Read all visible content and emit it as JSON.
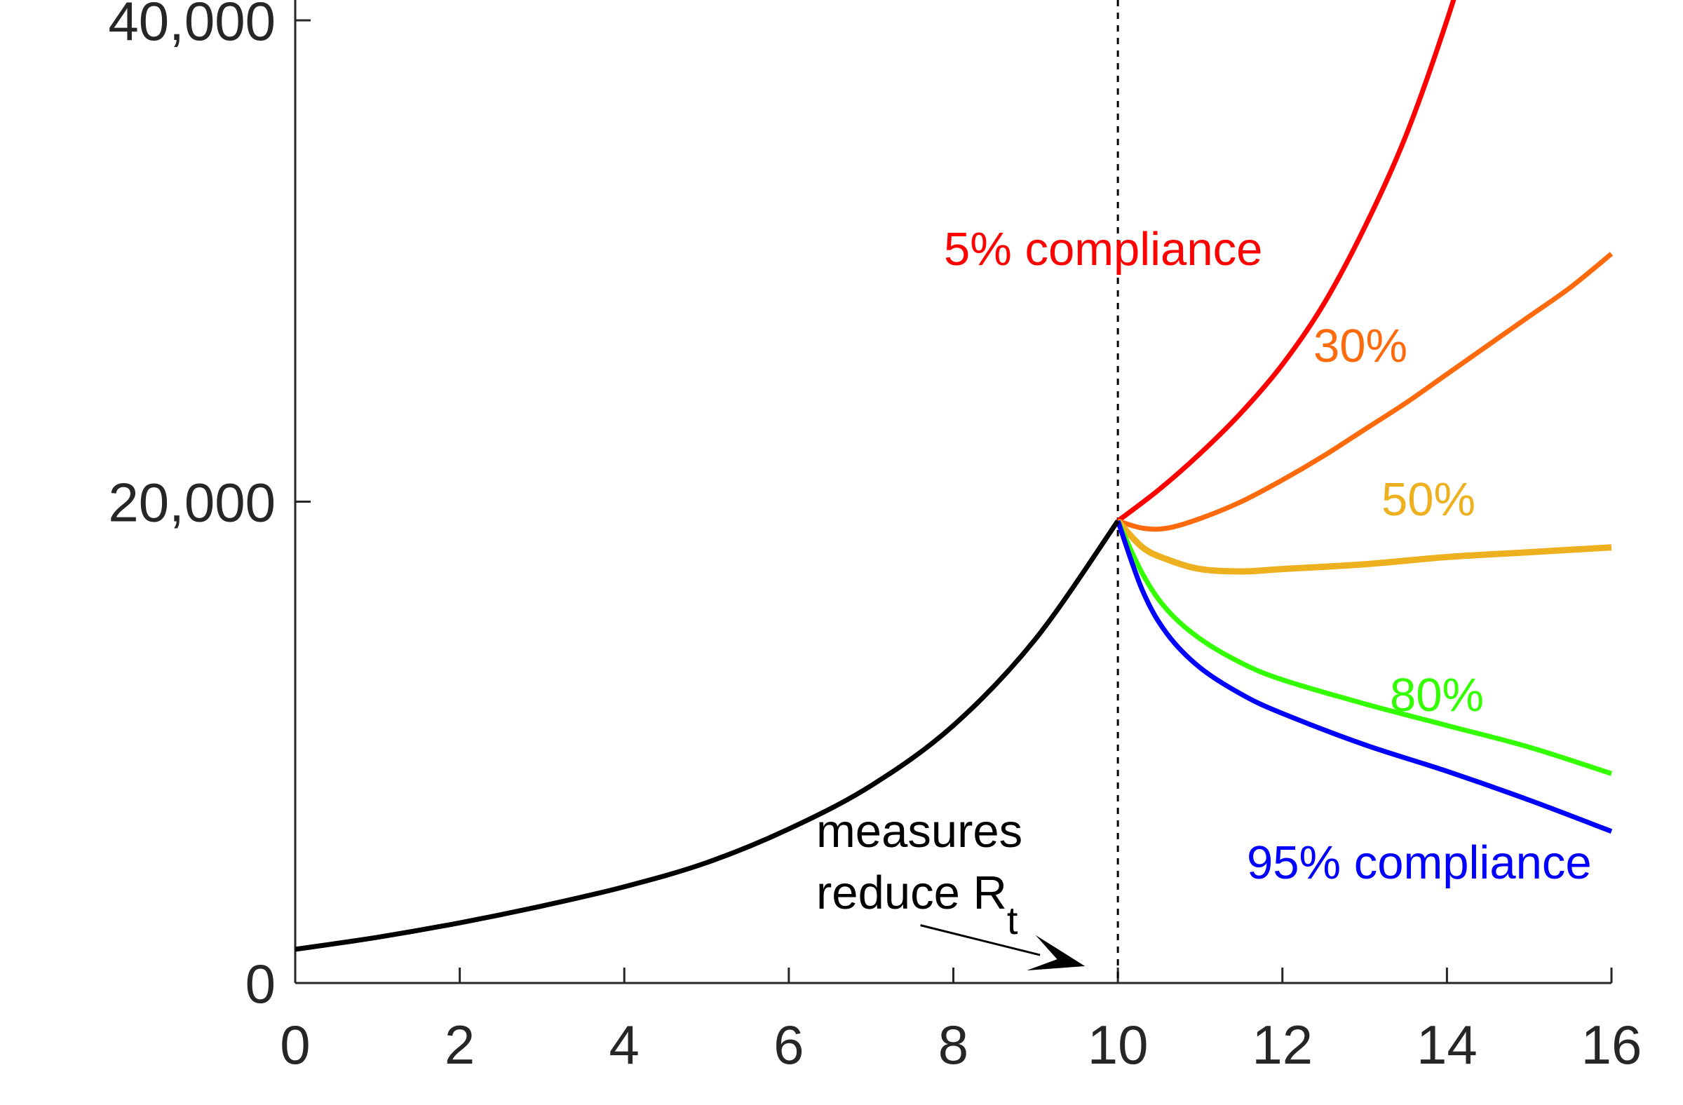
{
  "chart_data": {
    "type": "line",
    "title": "",
    "xlabel": "",
    "ylabel": "",
    "xlim": [
      0,
      16
    ],
    "ylim": [
      0,
      40000
    ],
    "x_ticks": [
      0,
      2,
      4,
      6,
      8,
      10,
      12,
      14,
      16
    ],
    "x_tick_labels": [
      "0",
      "2",
      "4",
      "6",
      "8",
      "10",
      "12",
      "14",
      "16"
    ],
    "y_ticks": [
      0,
      20000,
      40000
    ],
    "y_tick_labels": [
      "0",
      "20,000",
      "40,000"
    ],
    "grid": false,
    "intervention_x": 10,
    "annotation": {
      "line1": "measures",
      "line2_main": "reduce R",
      "line2_sub": "t",
      "arrow_from": [
        7.6,
        2400
      ],
      "arrow_to": [
        9.6,
        700
      ]
    },
    "series": [
      {
        "label": "",
        "color": "#000000",
        "x": [
          0,
          1,
          2,
          3,
          4,
          5,
          6,
          7,
          8,
          9,
          10
        ],
        "y": [
          1400,
          1900,
          2500,
          3200,
          4000,
          5000,
          6400,
          8200,
          10700,
          14300,
          19200
        ]
      },
      {
        "label": "5% compliance",
        "color": "#ff0000",
        "x": [
          10,
          10.5,
          11,
          11.5,
          12,
          12.5,
          13,
          13.5,
          14,
          14.5
        ],
        "y": [
          19200,
          20500,
          22000,
          23700,
          25700,
          28200,
          31400,
          35200,
          40000,
          45500
        ]
      },
      {
        "label": "30%",
        "color": "#ff6a0d",
        "x": [
          10,
          10.3,
          10.6,
          11,
          11.5,
          12,
          12.5,
          13,
          13.5,
          14,
          14.5,
          15,
          15.5,
          16
        ],
        "y": [
          19200,
          18900,
          18900,
          19300,
          20000,
          20900,
          21900,
          23000,
          24100,
          25300,
          26500,
          27700,
          28900,
          30300
        ]
      },
      {
        "label": "50%",
        "color": "#edb120",
        "x": [
          10,
          10.3,
          10.6,
          11,
          11.5,
          12,
          13,
          14,
          15,
          16
        ],
        "y": [
          19200,
          18100,
          17600,
          17200,
          17100,
          17200,
          17400,
          17700,
          17900,
          18100
        ]
      },
      {
        "label": "80%",
        "color": "#33ff00",
        "x": [
          10,
          10.3,
          10.6,
          11,
          11.5,
          12,
          13,
          14,
          15,
          16
        ],
        "y": [
          19200,
          17000,
          15500,
          14300,
          13300,
          12600,
          11600,
          10700,
          9800,
          8700
        ]
      },
      {
        "label": "95% compliance",
        "color": "#0000ff",
        "x": [
          10,
          10.3,
          10.6,
          11,
          11.5,
          12,
          13,
          14,
          15,
          16
        ],
        "y": [
          19200,
          16300,
          14500,
          13100,
          12000,
          11200,
          9900,
          8800,
          7600,
          6300
        ]
      }
    ]
  }
}
